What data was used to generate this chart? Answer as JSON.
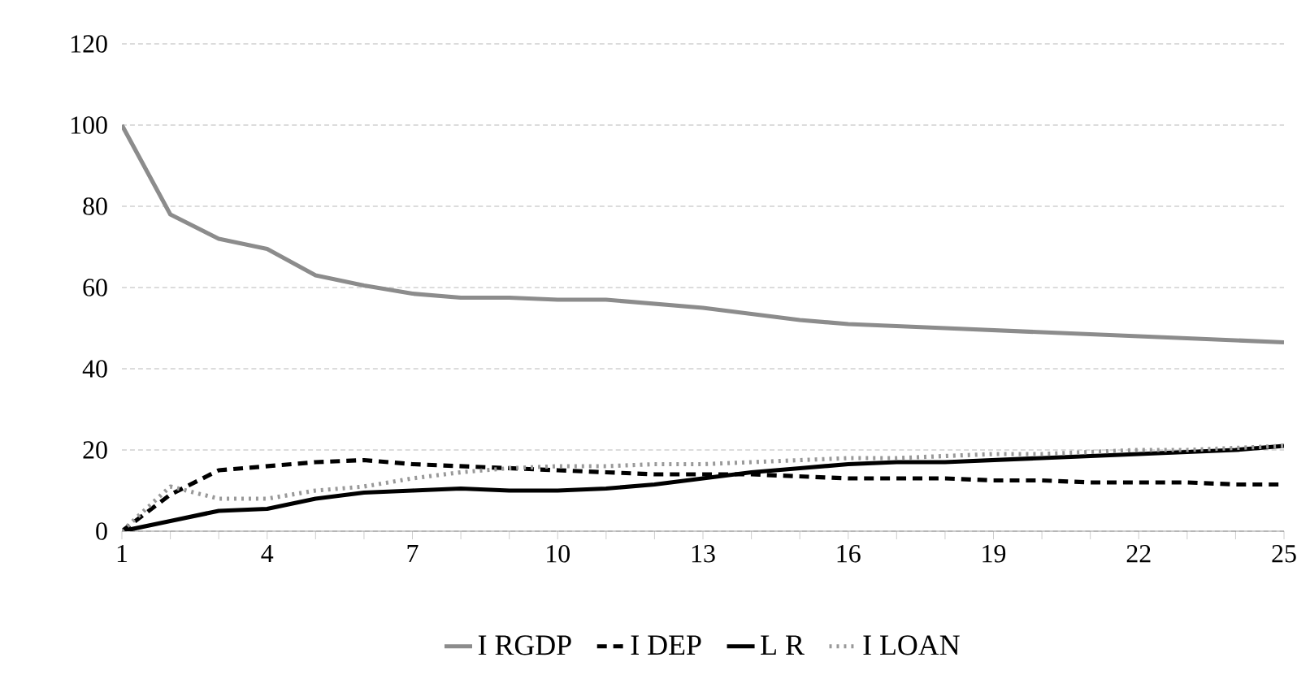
{
  "chart_data": {
    "type": "line",
    "categories": [
      "1",
      null,
      null,
      "4",
      null,
      null,
      "7",
      null,
      null,
      "10",
      null,
      null,
      "13",
      null,
      null,
      "16",
      null,
      null,
      "19",
      null,
      null,
      "22",
      null,
      null,
      "25"
    ],
    "series": [
      {
        "name": "I RGDP",
        "color": "#8c8c8c",
        "line_style": "solid",
        "values": [
          100,
          78,
          72,
          69.5,
          63,
          60.5,
          58.5,
          57.5,
          57.5,
          57,
          57,
          56,
          55,
          53.5,
          52,
          51,
          50.5,
          50,
          49.5,
          49,
          48.5,
          48,
          47.5,
          47,
          46.5
        ]
      },
      {
        "name": "I DEP",
        "color": "#000000",
        "line_style": "dashed",
        "values": [
          0,
          9,
          15,
          16,
          17,
          17.5,
          16.5,
          16,
          15.5,
          15,
          14.5,
          14,
          14,
          14,
          13.5,
          13,
          13,
          13,
          12.5,
          12.5,
          12,
          12,
          12,
          11.5,
          11.5
        ]
      },
      {
        "name": "L R",
        "color": "#000000",
        "line_style": "solid",
        "values": [
          0,
          2.5,
          5,
          5.5,
          8,
          9.5,
          10,
          10.5,
          10,
          10,
          10.5,
          11.5,
          13,
          14.5,
          15.5,
          16.5,
          17,
          17,
          17.5,
          18,
          18.5,
          19,
          19.5,
          20,
          21
        ]
      },
      {
        "name": "I LOAN",
        "color": "#999999",
        "line_style": "dotted",
        "values": [
          0,
          11,
          8,
          8,
          10,
          11,
          13,
          14.5,
          15.5,
          16,
          16,
          16.5,
          16.5,
          17,
          17.5,
          18,
          18,
          18.5,
          19,
          19,
          19.5,
          20,
          20,
          20.5,
          21
        ]
      }
    ],
    "ylim": [
      0,
      120
    ],
    "yticks": [
      0,
      20,
      40,
      60,
      80,
      100,
      120
    ],
    "grid": "y",
    "legend": "bottom"
  }
}
